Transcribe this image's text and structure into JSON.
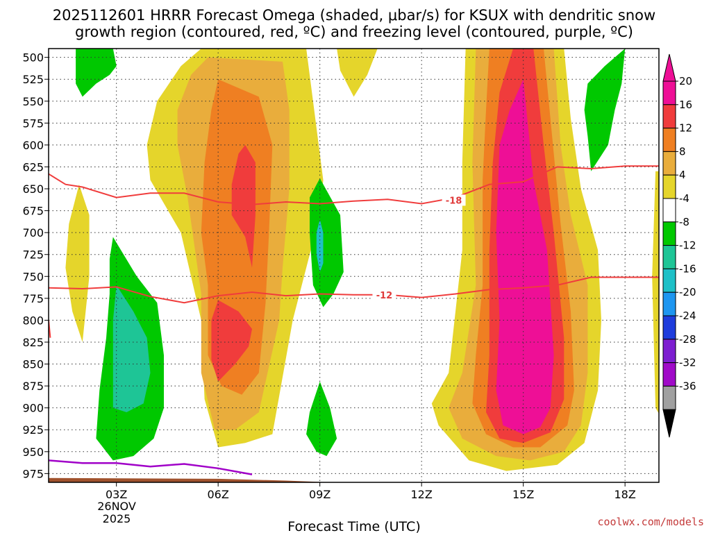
{
  "chart_data": {
    "type": "heatmap",
    "title_line1": "2025112601 HRRR Forecast Omega (shaded, μbar/s) for KSUX with dendritic snow",
    "title_line2": "growth region (contoured, red, ºC) and freezing level (contoured, purple, ºC)",
    "xlabel": "Forecast Time (UTC)",
    "x_ticks": [
      {
        "hour": 3,
        "label": "03Z"
      },
      {
        "hour": 6,
        "label": "06Z"
      },
      {
        "hour": 9,
        "label": "09Z"
      },
      {
        "hour": 12,
        "label": "12Z"
      },
      {
        "hour": 15,
        "label": "15Z"
      },
      {
        "hour": 18,
        "label": "18Z"
      }
    ],
    "date_label_1": "26NOV",
    "date_label_2": "2025",
    "xlim": [
      1,
      19
    ],
    "ylim": [
      490,
      985
    ],
    "y_ticks": [
      500,
      525,
      550,
      575,
      600,
      625,
      650,
      675,
      700,
      725,
      750,
      775,
      800,
      825,
      850,
      875,
      900,
      925,
      950,
      975
    ],
    "colorbar_ticks": [
      "20",
      "16",
      "12",
      "8",
      "4",
      "-4",
      "-8",
      "-12",
      "-16",
      "-20",
      "-24",
      "-28",
      "-32",
      "-36"
    ],
    "colorbar_colors": [
      "#ee0f96",
      "#f03c3c",
      "#ef7f22",
      "#e9ad3c",
      "#e5d52b",
      "#ffffff",
      "#00c800",
      "#1ec596",
      "#1ec0c7",
      "#1e96f0",
      "#1e3cdc",
      "#7d1ed0",
      "#a00ac8",
      "#a0a0a0"
    ],
    "fill_colors": {
      "yellow": "#e5d52b",
      "lightorange": "#e9ad3c",
      "orange": "#ef7f22",
      "red": "#f03c3c",
      "magenta": "#ee0f96",
      "green": "#00c800",
      "teal": "#1ec596",
      "cyan": "#1ec0c7"
    },
    "contours": {
      "minus18_label": "-18",
      "minus12_label": "-12",
      "minus18": [
        [
          1,
          633
        ],
        [
          1.5,
          645
        ],
        [
          2,
          648
        ],
        [
          3,
          660
        ],
        [
          4,
          655
        ],
        [
          5,
          655
        ],
        [
          6,
          665
        ],
        [
          7,
          668
        ],
        [
          8,
          665
        ],
        [
          9,
          667
        ],
        [
          10,
          664
        ],
        [
          11,
          662
        ],
        [
          12,
          667
        ],
        [
          13,
          660
        ],
        [
          14,
          645
        ],
        [
          15,
          642
        ],
        [
          16,
          625
        ],
        [
          17,
          627
        ],
        [
          18,
          624
        ],
        [
          19,
          624
        ]
      ],
      "minus12": [
        [
          1,
          763
        ],
        [
          2,
          764
        ],
        [
          3,
          762
        ],
        [
          4,
          773
        ],
        [
          5,
          780
        ],
        [
          6,
          772
        ],
        [
          7,
          768
        ],
        [
          8,
          772
        ],
        [
          9,
          770
        ],
        [
          10,
          771
        ],
        [
          11,
          771
        ],
        [
          12,
          774
        ],
        [
          13,
          770
        ],
        [
          14,
          765
        ],
        [
          15,
          763
        ],
        [
          16,
          760
        ],
        [
          17,
          751
        ],
        [
          18,
          751
        ],
        [
          19,
          751
        ]
      ],
      "freezing_level": [
        [
          1,
          960
        ],
        [
          2,
          963
        ],
        [
          3,
          963
        ],
        [
          4,
          967
        ],
        [
          5,
          964
        ],
        [
          6,
          969
        ],
        [
          7,
          976
        ]
      ]
    },
    "terrain_color": "#a0522d",
    "contour_color": "#f03c3c",
    "freezing_color": "#a000c8"
  },
  "credit": "coolwx.com/models"
}
